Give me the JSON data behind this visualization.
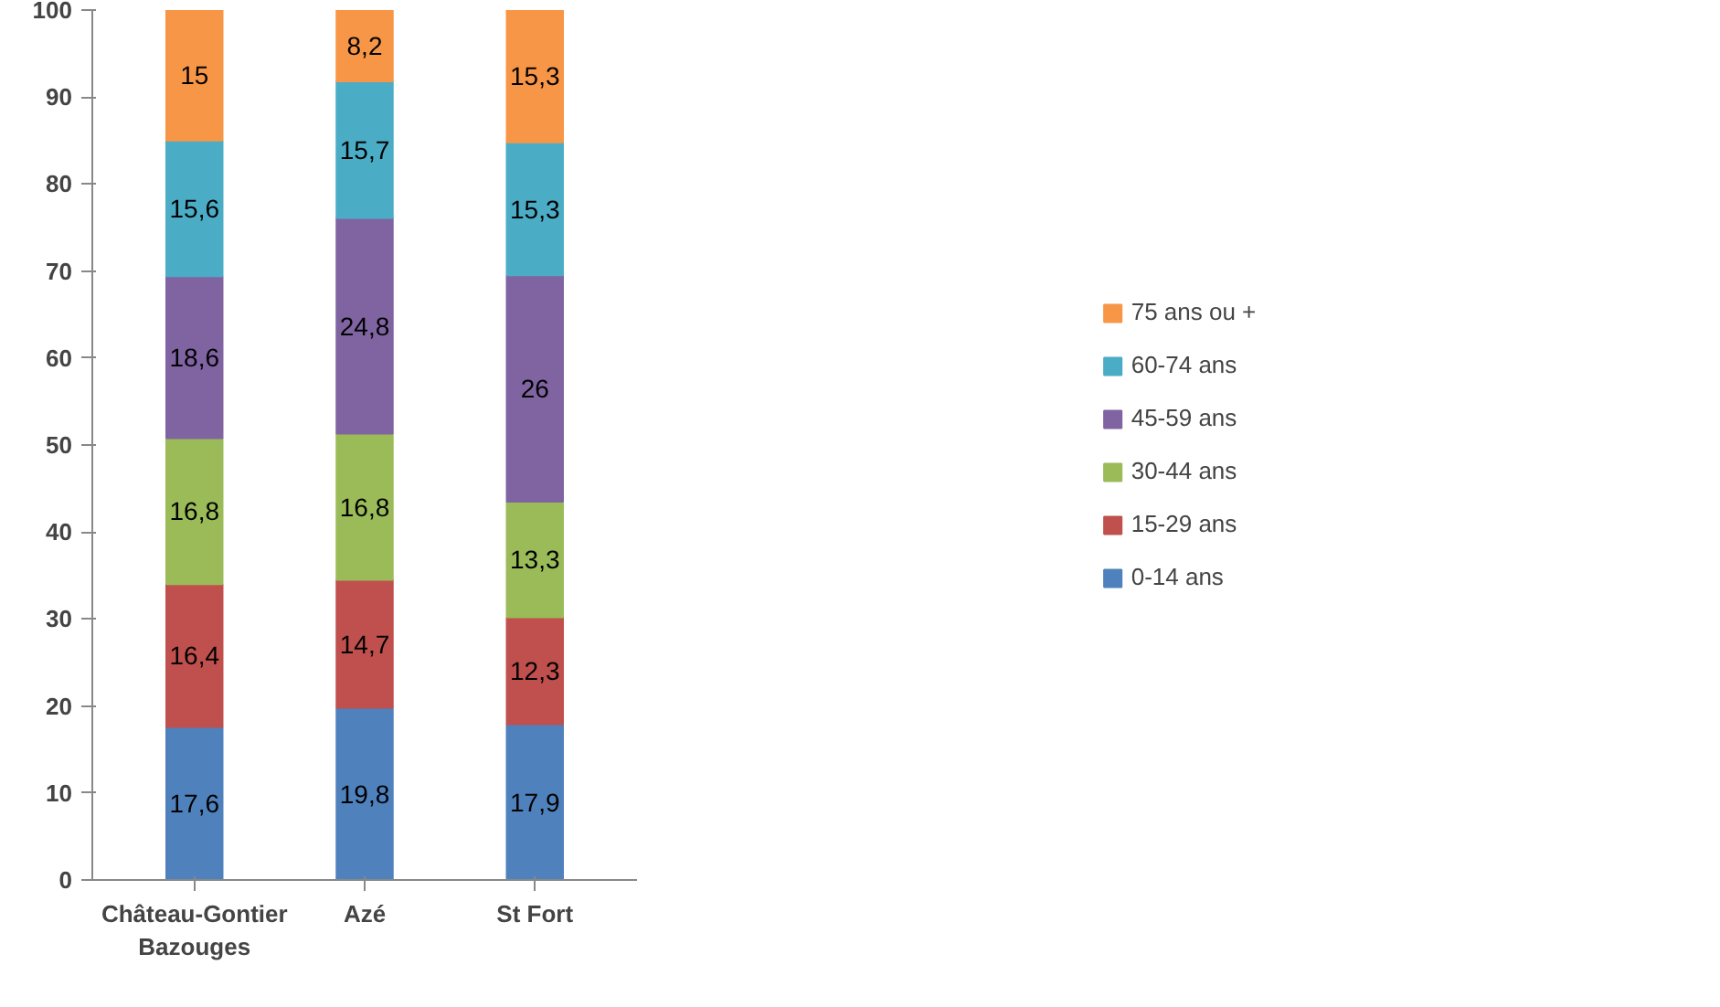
{
  "chart_data": {
    "type": "bar",
    "stacked": true,
    "categories": [
      "Château-Gontier Bazouges",
      "Azé",
      "St Fort"
    ],
    "series": [
      {
        "name": "0-14 ans",
        "color": "#4f81bd",
        "values": [
          17.6,
          19.8,
          17.9
        ],
        "value_labels": [
          "17,6",
          "19,8",
          "17,9"
        ]
      },
      {
        "name": "15-29 ans",
        "color": "#c0504d",
        "values": [
          16.4,
          14.7,
          12.3
        ],
        "value_labels": [
          "16,4",
          "14,7",
          "12,3"
        ]
      },
      {
        "name": "30-44 ans",
        "color": "#9bbb59",
        "values": [
          16.8,
          16.8,
          13.3
        ],
        "value_labels": [
          "16,8",
          "16,8",
          "13,3"
        ]
      },
      {
        "name": "45-59 ans",
        "color": "#8064a2",
        "values": [
          18.6,
          24.8,
          26
        ],
        "value_labels": [
          "18,6",
          "24,8",
          "26"
        ]
      },
      {
        "name": "60-74 ans",
        "color": "#4bacc6",
        "values": [
          15.6,
          15.7,
          15.3
        ],
        "value_labels": [
          "15,6",
          "15,7",
          "15,3"
        ]
      },
      {
        "name": "75 ans ou +",
        "color": "#f79646",
        "values": [
          15,
          8.2,
          15.3
        ],
        "value_labels": [
          "15",
          "8,2",
          "15,3"
        ]
      }
    ],
    "ylim": [
      0,
      100
    ],
    "yticks": [
      0,
      10,
      20,
      30,
      40,
      50,
      60,
      70,
      80,
      90,
      100
    ],
    "grid": false,
    "legend": "right"
  }
}
